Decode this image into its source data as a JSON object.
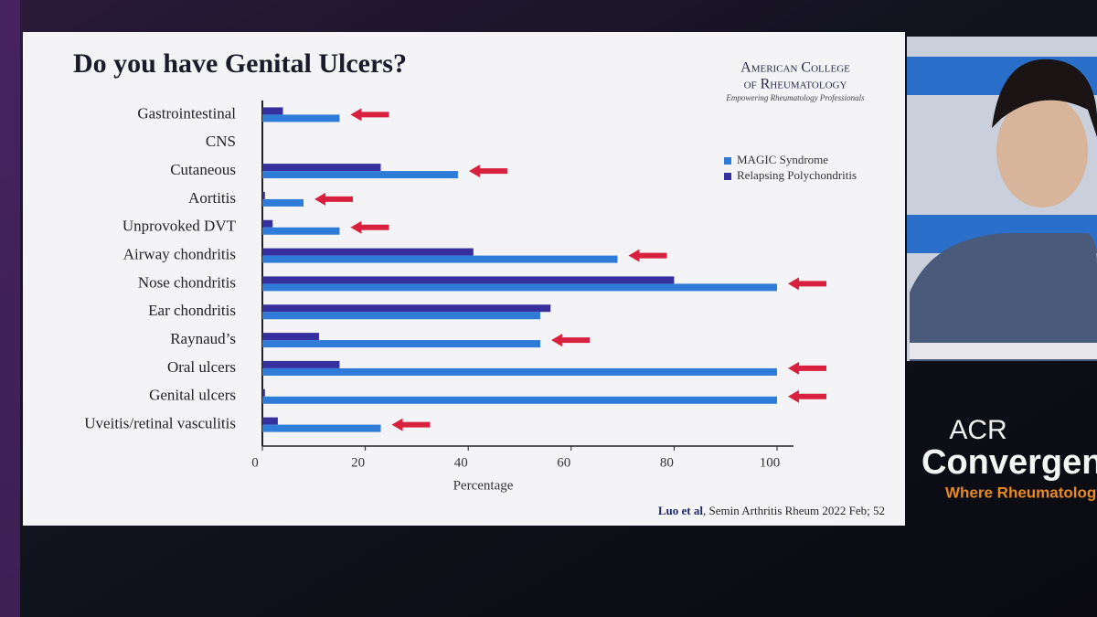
{
  "chart_data": {
    "type": "bar",
    "orientation": "horizontal",
    "title": "Do you have Genital Ulcers?",
    "categories": [
      "Gastrointestinal",
      "CNS",
      "Cutaneous",
      "Aortitis",
      "Unprovoked DVT",
      "Airway chondritis",
      "Nose chondritis",
      "Ear chondritis",
      "Raynaud’s",
      "Oral ulcers",
      "Genital ulcers",
      "Uveitis/retinal vasculitis"
    ],
    "series": [
      {
        "name": "MAGIC Syndrome",
        "color": "#2f7bd8",
        "values": [
          15,
          0,
          38,
          8,
          15,
          69,
          100,
          54,
          54,
          100,
          100,
          23
        ]
      },
      {
        "name": "Relapsing Polychondritis",
        "color": "#35309e",
        "values": [
          4,
          0,
          23,
          0.5,
          2,
          41,
          80,
          56,
          11,
          15,
          0.5,
          3
        ]
      }
    ],
    "highlighted": [
      true,
      false,
      true,
      true,
      true,
      true,
      true,
      false,
      true,
      true,
      true,
      true
    ],
    "highlight_color": "#d8203f",
    "xlim": [
      0,
      100
    ],
    "xticks": [
      0,
      20,
      40,
      60,
      80,
      100
    ],
    "xlabel": "Percentage"
  },
  "slide": {
    "logo": {
      "line1": "American College",
      "line2": "of Rheumatology",
      "tagline": "Empowering Rheumatology Professionals"
    },
    "citation": {
      "authors": "Luo et al",
      "source": "Semin Arthritis Rheum 2022 Feb; 52"
    }
  },
  "event_logo": {
    "acr": "ACR",
    "name": "Convergen",
    "tagline": "Where Rheumatology"
  }
}
